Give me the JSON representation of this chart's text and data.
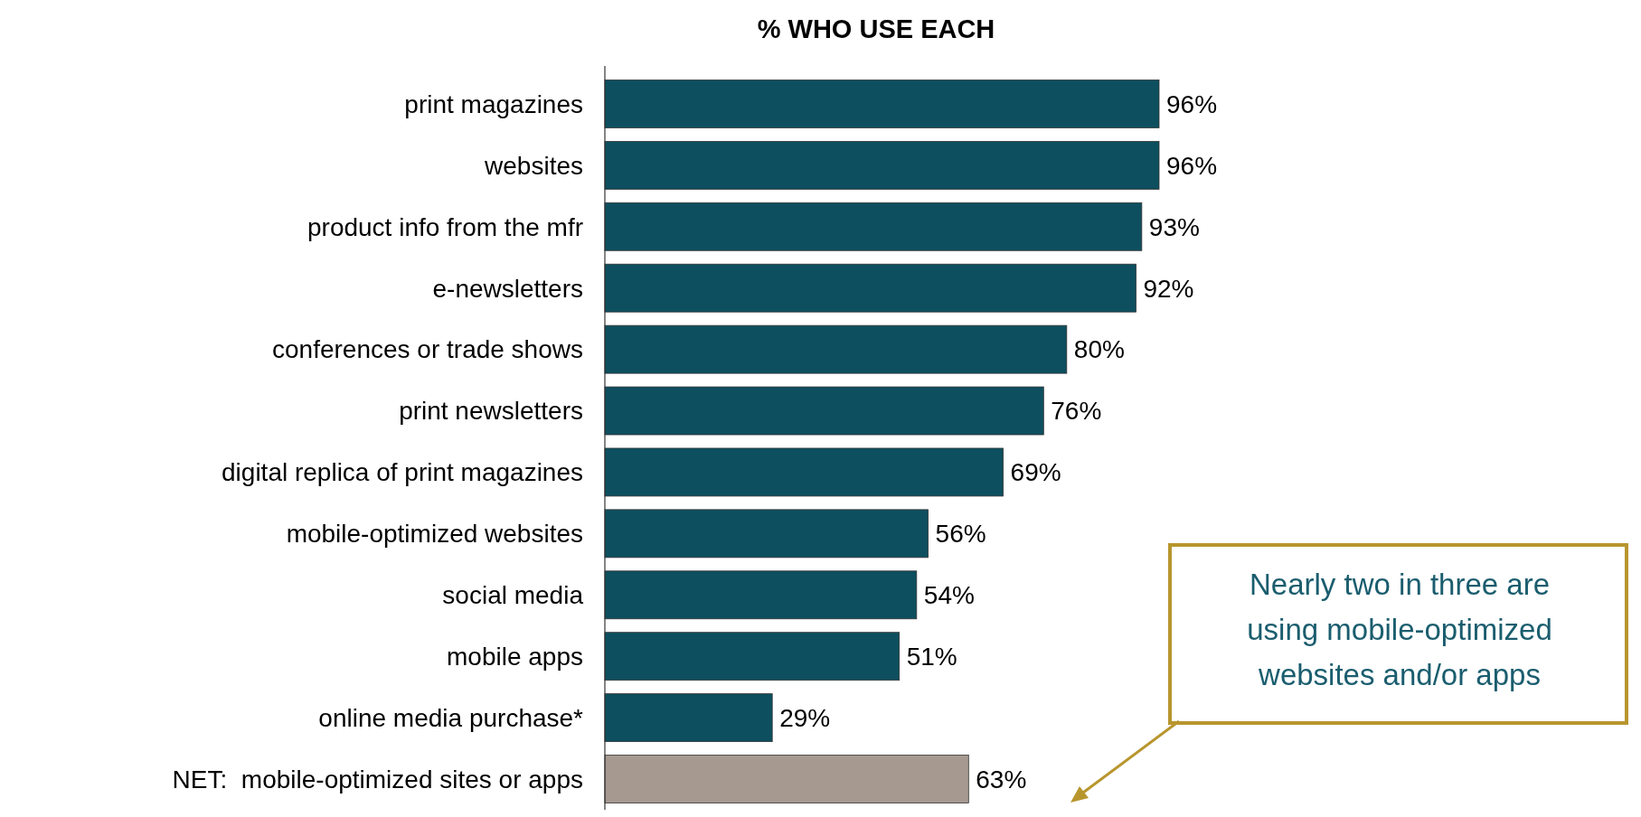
{
  "chart_data": {
    "type": "bar",
    "orientation": "horizontal",
    "title": "% WHO USE EACH",
    "categories": [
      "print magazines",
      "websites",
      "product info from the mfr",
      "e-newsletters",
      "conferences or trade shows",
      "print newsletters",
      "digital replica of print magazines",
      "mobile-optimized websites",
      "social media",
      "mobile apps",
      "online media purchase*",
      "NET:  mobile-optimized sites or apps"
    ],
    "values": [
      96,
      96,
      93,
      92,
      80,
      76,
      69,
      56,
      54,
      51,
      29,
      63
    ],
    "colors": [
      "#0d4f5f",
      "#0d4f5f",
      "#0d4f5f",
      "#0d4f5f",
      "#0d4f5f",
      "#0d4f5f",
      "#0d4f5f",
      "#0d4f5f",
      "#0d4f5f",
      "#0d4f5f",
      "#0d4f5f",
      "#a69990"
    ],
    "value_labels": [
      "96%",
      "96%",
      "93%",
      "92%",
      "80%",
      "76%",
      "69%",
      "56%",
      "54%",
      "51%",
      "29%",
      "63%"
    ],
    "annotations": [
      "Nearly two in three are using mobile-optimized websites and/or apps"
    ]
  }
}
